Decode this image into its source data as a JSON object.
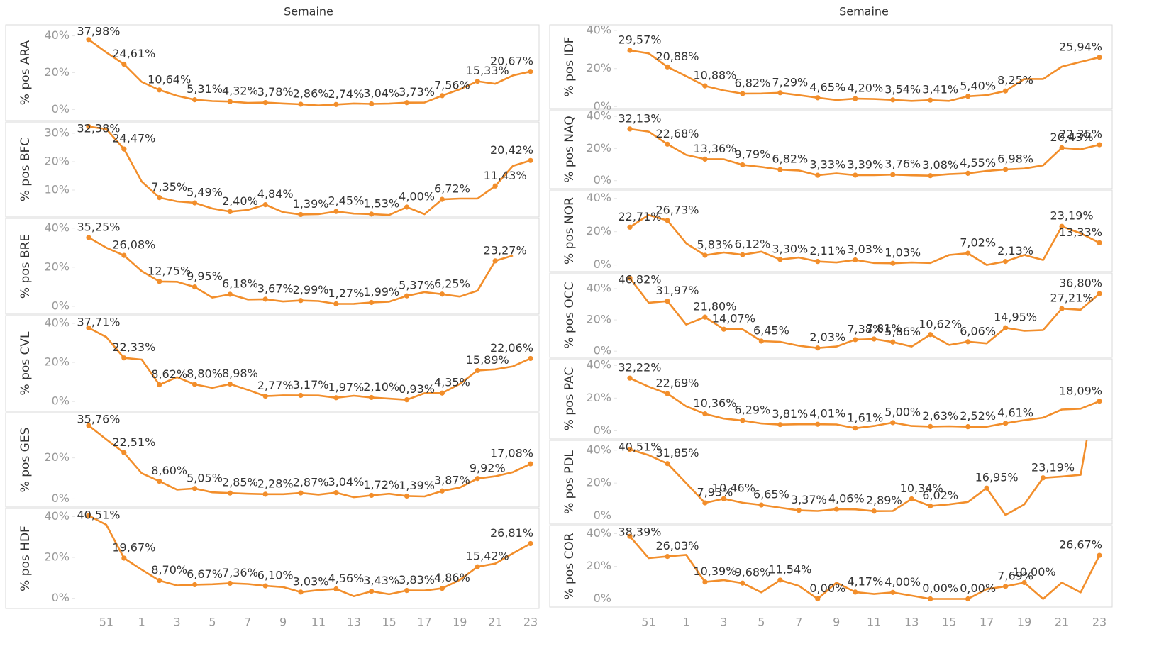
{
  "chart_data": [
    {
      "type": "line",
      "x_title": "Semaine",
      "color": "#f28e2b",
      "categories": [
        null,
        "51",
        null,
        "1",
        null,
        "3",
        null,
        "5",
        null,
        "7",
        null,
        "9",
        null,
        "11",
        null,
        "13",
        null,
        "15",
        null,
        "17",
        null,
        "19",
        null,
        "21",
        null,
        "23"
      ],
      "panels": [
        {
          "name": "% pos ARA",
          "ylim": [
            -6,
            46
          ],
          "yticks": [
            {
              "value": 0,
              "label": "0%"
            },
            {
              "value": 20,
              "label": "20%"
            },
            {
              "value": 40,
              "label": "40%"
            }
          ],
          "values": [
            37.98,
            31,
            24.61,
            15,
            10.64,
            7.5,
            5.31,
            4.6,
            4.32,
            3.6,
            3.78,
            3.3,
            2.86,
            2.2,
            2.74,
            3.3,
            3.04,
            3.2,
            3.73,
            3.8,
            7.56,
            11,
            15.33,
            14,
            18.5,
            20.67
          ],
          "value_labels": [
            "37,98%",
            null,
            "24,61%",
            null,
            "10,64%",
            null,
            "5,31%",
            null,
            "4,32%",
            null,
            "3,78%",
            null,
            "2,86%",
            null,
            "2,74%",
            null,
            "3,04%",
            null,
            "3,73%",
            null,
            "7,56%",
            null,
            "15,33%",
            null,
            null,
            "20,67%"
          ]
        },
        {
          "name": "% pos BFC",
          "ylim": [
            0.5,
            34
          ],
          "yticks": [
            {
              "value": 10,
              "label": "10%"
            },
            {
              "value": 20,
              "label": "20%"
            },
            {
              "value": 30,
              "label": "30%"
            }
          ],
          "values": [
            32.38,
            31.5,
            24.47,
            13,
            7.35,
            6,
            5.49,
            3.5,
            2.4,
            3,
            4.84,
            2.2,
            1.39,
            1.5,
            2.45,
            1.7,
            1.53,
            1.2,
            4.0,
            1.5,
            6.72,
            7,
            7,
            11.43,
            18.5,
            20.42
          ],
          "value_labels": [
            "32,38%",
            null,
            "24,47%",
            null,
            "7,35%",
            null,
            "5,49%",
            null,
            "2,40%",
            null,
            "4,84%",
            null,
            "1,39%",
            null,
            "2,45%",
            null,
            "1,53%",
            null,
            "4,00%",
            null,
            "6,72%",
            null,
            null,
            "11,43%",
            null,
            "20,42%"
          ]
        },
        {
          "name": "% pos BRE",
          "ylim": [
            -4,
            45
          ],
          "yticks": [
            {
              "value": 0,
              "label": "0%"
            },
            {
              "value": 20,
              "label": "20%"
            },
            {
              "value": 40,
              "label": "40%"
            }
          ],
          "values": [
            35.25,
            30,
            26.08,
            18,
            12.75,
            12.6,
            9.95,
            4.5,
            6.18,
            3.5,
            3.67,
            2.5,
            2.99,
            2.7,
            1.27,
            1.3,
            1.99,
            2.4,
            5.37,
            7.3,
            6.25,
            5,
            8,
            23.27,
            26,
            null
          ],
          "value_labels": [
            "35,25%",
            null,
            "26,08%",
            null,
            "12,75%",
            null,
            "9,95%",
            null,
            "6,18%",
            null,
            "3,67%",
            null,
            "2,99%",
            null,
            "1,27%",
            null,
            "1,99%",
            null,
            "5,37%",
            null,
            "6,25%",
            null,
            null,
            "23,27%",
            null,
            null
          ]
        },
        {
          "name": "% pos CVL",
          "ylim": [
            -5,
            44
          ],
          "yticks": [
            {
              "value": 0,
              "label": "0%"
            },
            {
              "value": 20,
              "label": "20%"
            },
            {
              "value": 40,
              "label": "40%"
            }
          ],
          "values": [
            37.71,
            33,
            22.33,
            21.5,
            8.62,
            12.5,
            8.8,
            7,
            8.98,
            6,
            2.77,
            3.2,
            3.17,
            3.1,
            1.97,
            3,
            2.1,
            1.5,
            0.93,
            4.3,
            4.35,
            9,
            15.89,
            16.5,
            18,
            22.06
          ],
          "value_labels": [
            "37,71%",
            null,
            "22,33%",
            null,
            "8,62%",
            null,
            "8,80%",
            null,
            "8,98%",
            null,
            "2,77%",
            null,
            "3,17%",
            null,
            "1,97%",
            null,
            "2,10%",
            null,
            "0,93%",
            null,
            "4,35%",
            null,
            "15,89%",
            null,
            null,
            "22,06%"
          ]
        },
        {
          "name": "% pos GES",
          "ylim": [
            -4,
            42
          ],
          "yticks": [
            {
              "value": 0,
              "label": "0%"
            },
            {
              "value": 20,
              "label": "20%"
            }
          ],
          "values": [
            35.76,
            29,
            22.51,
            12.5,
            8.6,
            4.5,
            5.05,
            3.2,
            2.85,
            2.5,
            2.28,
            2.3,
            2.87,
            2.1,
            3.04,
            0.8,
            1.72,
            2.5,
            1.39,
            1.2,
            3.87,
            5.5,
            9.92,
            11,
            13,
            17.08
          ],
          "value_labels": [
            "35,76%",
            null,
            "22,51%",
            null,
            "8,60%",
            null,
            "5,05%",
            null,
            "2,85%",
            null,
            "2,28%",
            null,
            "2,87%",
            null,
            "3,04%",
            null,
            "1,72%",
            null,
            "1,39%",
            null,
            "3,87%",
            null,
            "9,92%",
            null,
            null,
            "17,08%"
          ]
        },
        {
          "name": "% pos HDF",
          "ylim": [
            -5,
            44
          ],
          "yticks": [
            {
              "value": 0,
              "label": "0%"
            },
            {
              "value": 20,
              "label": "20%"
            },
            {
              "value": 40,
              "label": "40%"
            }
          ],
          "values": [
            40.51,
            36,
            19.67,
            14,
            8.7,
            6.3,
            6.67,
            6.9,
            7.36,
            7,
            6.1,
            5.5,
            3.03,
            4,
            4.56,
            1,
            3.43,
            2,
            3.83,
            3.8,
            4.86,
            9,
            15.42,
            17,
            22,
            26.81
          ],
          "value_labels": [
            "40,51%",
            null,
            "19,67%",
            null,
            "8,70%",
            null,
            "6,67%",
            null,
            "7,36%",
            null,
            "6,10%",
            null,
            "3,03%",
            null,
            "4,56%",
            null,
            "3,43%",
            null,
            "3,83%",
            null,
            "4,86%",
            null,
            "15,42%",
            null,
            null,
            "26,81%"
          ]
        }
      ]
    },
    {
      "type": "line",
      "x_title": "Semaine",
      "color": "#f28e2b",
      "categories": [
        null,
        "51",
        null,
        "1",
        null,
        "3",
        null,
        "5",
        null,
        "7",
        null,
        "9",
        null,
        "11",
        null,
        "13",
        null,
        "15",
        null,
        "17",
        null,
        "19",
        null,
        "21",
        null,
        "23"
      ],
      "panels": [
        {
          "name": "% pos IDF",
          "ylim": [
            -1,
            43
          ],
          "yticks": [
            {
              "value": 0,
              "label": "0%"
            },
            {
              "value": 20,
              "label": "20%"
            },
            {
              "value": 40,
              "label": "40%"
            }
          ],
          "values": [
            29.57,
            28,
            20.88,
            16,
            10.88,
            8.5,
            6.82,
            6.9,
            7.29,
            6,
            4.65,
            3.5,
            4.2,
            4,
            3.54,
            3,
            3.41,
            3,
            5.4,
            6,
            8.25,
            14.5,
            14.5,
            21,
            23.5,
            25.94
          ],
          "value_labels": [
            "29,57%",
            null,
            "20,88%",
            null,
            "10,88%",
            null,
            "6,82%",
            null,
            "7,29%",
            null,
            "4,65%",
            null,
            "4,20%",
            null,
            "3,54%",
            null,
            "3,41%",
            null,
            "5,40%",
            null,
            "8,25%",
            null,
            null,
            null,
            null,
            "25,94%"
          ]
        },
        {
          "name": "% pos NAQ",
          "ylim": [
            -5,
            44
          ],
          "yticks": [
            {
              "value": 0,
              "label": "0%"
            },
            {
              "value": 20,
              "label": "20%"
            },
            {
              "value": 40,
              "label": "40%"
            }
          ],
          "values": [
            32.13,
            30.5,
            22.68,
            16,
            13.36,
            13.3,
            9.79,
            8.5,
            6.82,
            6.3,
            3.33,
            4.5,
            3.39,
            3.4,
            3.76,
            3.3,
            3.08,
            4,
            4.55,
            6,
            6.98,
            7.5,
            9.5,
            20.43,
            19.5,
            22.35
          ],
          "value_labels": [
            "32,13%",
            null,
            "22,68%",
            null,
            "13,36%",
            null,
            "9,79%",
            null,
            "6,82%",
            null,
            "3,33%",
            null,
            "3,39%",
            null,
            "3,76%",
            null,
            "3,08%",
            null,
            "4,55%",
            null,
            "6,98%",
            null,
            null,
            "20,43%",
            null,
            "22,35%"
          ]
        },
        {
          "name": "% pos NOR",
          "ylim": [
            -4,
            45
          ],
          "yticks": [
            {
              "value": 0,
              "label": "0%"
            },
            {
              "value": 20,
              "label": "20%"
            },
            {
              "value": 40,
              "label": "40%"
            }
          ],
          "values": [
            22.71,
            30,
            26.73,
            13,
            5.83,
            7.5,
            6.12,
            8,
            3.3,
            4.5,
            2.11,
            1.5,
            3.03,
            1.2,
            1.03,
            1.5,
            1.2,
            6,
            7.02,
            0,
            2.13,
            6,
            3,
            23.19,
            19,
            13.33
          ],
          "value_labels": [
            "22,71%",
            null,
            "26,73%",
            null,
            "5,83%",
            null,
            "6,12%",
            null,
            "3,30%",
            null,
            "2,11%",
            null,
            "3,03%",
            null,
            "1,03%",
            null,
            null,
            null,
            "7,02%",
            null,
            "2,13%",
            null,
            null,
            "23,19%",
            null,
            "13,33%"
          ]
        },
        {
          "name": "% pos OCC",
          "ylim": [
            -4,
            50
          ],
          "yticks": [
            {
              "value": 0,
              "label": "0%"
            },
            {
              "value": 20,
              "label": "20%"
            },
            {
              "value": 40,
              "label": "40%"
            }
          ],
          "values": [
            46.82,
            31,
            31.97,
            17,
            21.8,
            14.07,
            14,
            6.45,
            6,
            3.5,
            2.03,
            3,
            7.38,
            7.81,
            5.86,
            3,
            10.62,
            4,
            6.06,
            5,
            14.95,
            13,
            13.5,
            27.21,
            26.5,
            36.8
          ],
          "value_labels": [
            "46,82%",
            null,
            "31,97%",
            null,
            "21,80%",
            "14,07%",
            null,
            "6,45%",
            null,
            null,
            "2,03%",
            null,
            "7,38%",
            "7,81%",
            "5,86%",
            null,
            "10,62%",
            null,
            "6,06%",
            null,
            "14,95%",
            null,
            null,
            "27,21%",
            null,
            "36,80%"
          ]
        },
        {
          "name": "% pos PAC",
          "ylim": [
            -5,
            44
          ],
          "yticks": [
            {
              "value": 0,
              "label": "0%"
            },
            {
              "value": 20,
              "label": "20%"
            },
            {
              "value": 40,
              "label": "40%"
            }
          ],
          "values": [
            32.22,
            27,
            22.69,
            15,
            10.36,
            7.5,
            6.29,
            4.5,
            3.81,
            4,
            4.01,
            3.9,
            1.61,
            3,
            5.0,
            3,
            2.63,
            2.8,
            2.52,
            2.5,
            4.61,
            6.5,
            8,
            13,
            13.5,
            18.09
          ],
          "value_labels": [
            "32,22%",
            null,
            "22,69%",
            null,
            "10,36%",
            null,
            "6,29%",
            null,
            "3,81%",
            null,
            "4,01%",
            null,
            "1,61%",
            null,
            "5,00%",
            null,
            "2,63%",
            null,
            "2,52%",
            null,
            "4,61%",
            null,
            null,
            null,
            null,
            "18,09%"
          ]
        },
        {
          "name": "% pos PDL",
          "ylim": [
            -5,
            46
          ],
          "yticks": [
            {
              "value": 0,
              "label": "0%"
            },
            {
              "value": 20,
              "label": "20%"
            },
            {
              "value": 40,
              "label": "40%"
            }
          ],
          "values": [
            40.51,
            37,
            31.85,
            20,
            7.93,
            10.46,
            8,
            6.65,
            5,
            3.37,
            3,
            4.06,
            4,
            2.89,
            3,
            10.34,
            6.02,
            7,
            8.5,
            16.95,
            0.5,
            7,
            23.19,
            24,
            25,
            90
          ],
          "value_labels": [
            "40,51%",
            null,
            "31,85%",
            null,
            "7,93%",
            "10,46%",
            null,
            "6,65%",
            null,
            "3,37%",
            null,
            "4,06%",
            null,
            "2,89%",
            null,
            "10,34%",
            "6,02%",
            null,
            null,
            "16,95%",
            null,
            null,
            "23,19%",
            null,
            null,
            null
          ]
        },
        {
          "name": "% pos COR",
          "ylim": [
            -5,
            45
          ],
          "yticks": [
            {
              "value": 0,
              "label": "0%"
            },
            {
              "value": 20,
              "label": "20%"
            },
            {
              "value": 40,
              "label": "40%"
            }
          ],
          "values": [
            38.39,
            25,
            26.03,
            27,
            10.39,
            11.5,
            9.68,
            4,
            11.54,
            8,
            0.0,
            10,
            4.17,
            3,
            4.0,
            2,
            0.0,
            0,
            0.0,
            6,
            7.69,
            10.0,
            0,
            10,
            4,
            26.67
          ],
          "value_labels": [
            "38,39%",
            null,
            "26,03%",
            null,
            "10,39%",
            null,
            "9,68%",
            null,
            "11,54%",
            null,
            "0,00%",
            null,
            "4,17%",
            null,
            "4,00%",
            null,
            "0,00%",
            null,
            "0,00%",
            null,
            "7,69%",
            "10,00%",
            null,
            null,
            null,
            "26,67%"
          ]
        }
      ]
    }
  ]
}
